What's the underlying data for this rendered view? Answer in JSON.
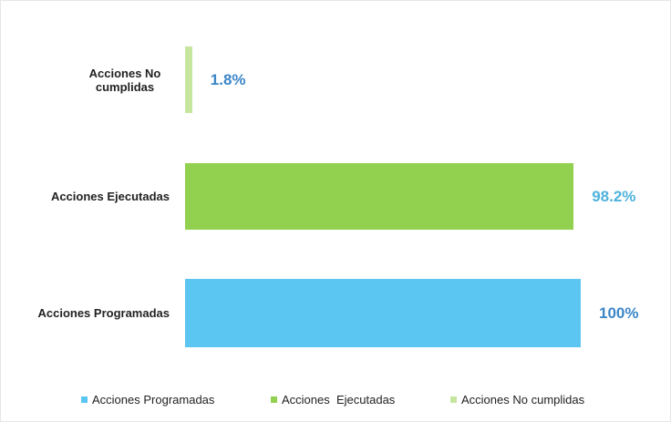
{
  "chart_data": {
    "type": "hbar",
    "categories": [
      "Acciones Programadas",
      "Acciones  Ejecutadas",
      "Acciones No cumplidas"
    ],
    "values": [
      100,
      98.2,
      1.8
    ],
    "value_labels": [
      "100%",
      "98.2%",
      "1.8%"
    ],
    "colors": [
      "#5cc6f2",
      "#92d050",
      "#c6e6a0"
    ],
    "label_colors": [
      "#3c86c8",
      "#4fb2dc",
      "#3c86c8"
    ],
    "xlim": [
      0,
      100
    ],
    "legend": "bottom"
  }
}
